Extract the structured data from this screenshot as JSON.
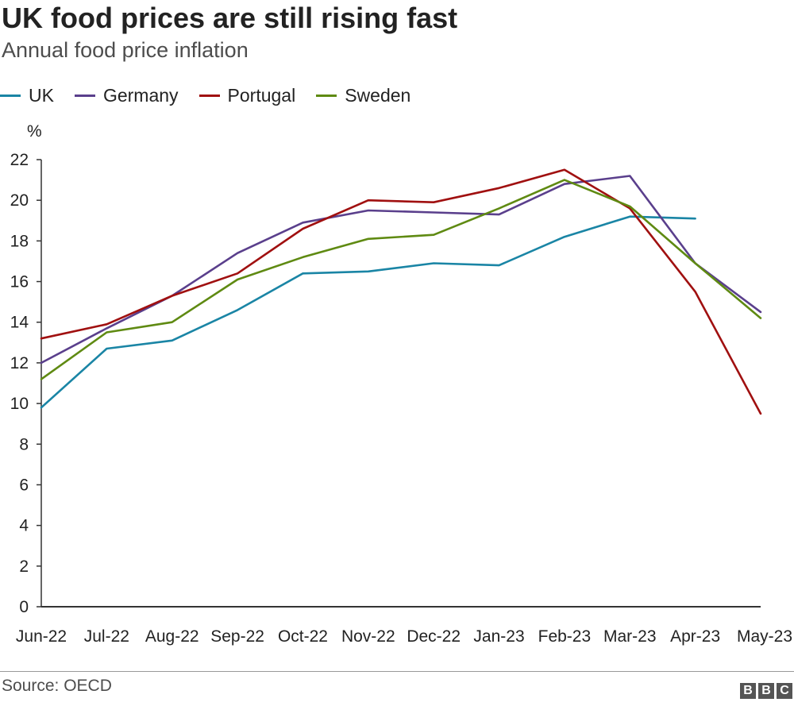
{
  "header": {
    "title": "UK food prices are still rising fast",
    "subtitle": "Annual food price inflation"
  },
  "legend": [
    {
      "name": "UK",
      "color": "#1a85a5"
    },
    {
      "name": "Germany",
      "color": "#5a3f8c"
    },
    {
      "name": "Portugal",
      "color": "#a01010"
    },
    {
      "name": "Sweden",
      "color": "#5f8a12"
    }
  ],
  "footer": {
    "source": "Source: OECD",
    "logo": [
      "B",
      "B",
      "C"
    ]
  },
  "chart_data": {
    "type": "line",
    "title": "UK food prices are still rising fast",
    "subtitle": "Annual food price inflation",
    "ylabel": "%",
    "xlabel": "",
    "ylim": [
      0,
      22
    ],
    "yticks": [
      0,
      2,
      4,
      6,
      8,
      10,
      12,
      14,
      16,
      18,
      20,
      22
    ],
    "grid": false,
    "legend_position": "top-left",
    "categories": [
      "Jun-22",
      "Jul-22",
      "Aug-22",
      "Sep-22",
      "Oct-22",
      "Nov-22",
      "Dec-22",
      "Jan-23",
      "Feb-23",
      "Mar-23",
      "Apr-23",
      "May-23"
    ],
    "series": [
      {
        "name": "UK",
        "color": "#1a85a5",
        "values": [
          9.8,
          12.7,
          13.1,
          14.6,
          16.4,
          16.5,
          16.9,
          16.8,
          18.2,
          19.2,
          19.1,
          null
        ]
      },
      {
        "name": "Germany",
        "color": "#5a3f8c",
        "values": [
          12.0,
          13.7,
          15.3,
          17.4,
          18.9,
          19.5,
          19.4,
          19.3,
          20.8,
          21.2,
          16.9,
          14.5
        ]
      },
      {
        "name": "Portugal",
        "color": "#a01010",
        "values": [
          13.2,
          13.9,
          15.3,
          16.4,
          18.6,
          20.0,
          19.9,
          20.6,
          21.5,
          19.6,
          15.5,
          9.5
        ]
      },
      {
        "name": "Sweden",
        "color": "#5f8a12",
        "values": [
          11.2,
          13.5,
          14.0,
          16.1,
          17.2,
          18.1,
          18.3,
          19.6,
          21.0,
          19.7,
          16.9,
          14.2
        ]
      }
    ]
  }
}
